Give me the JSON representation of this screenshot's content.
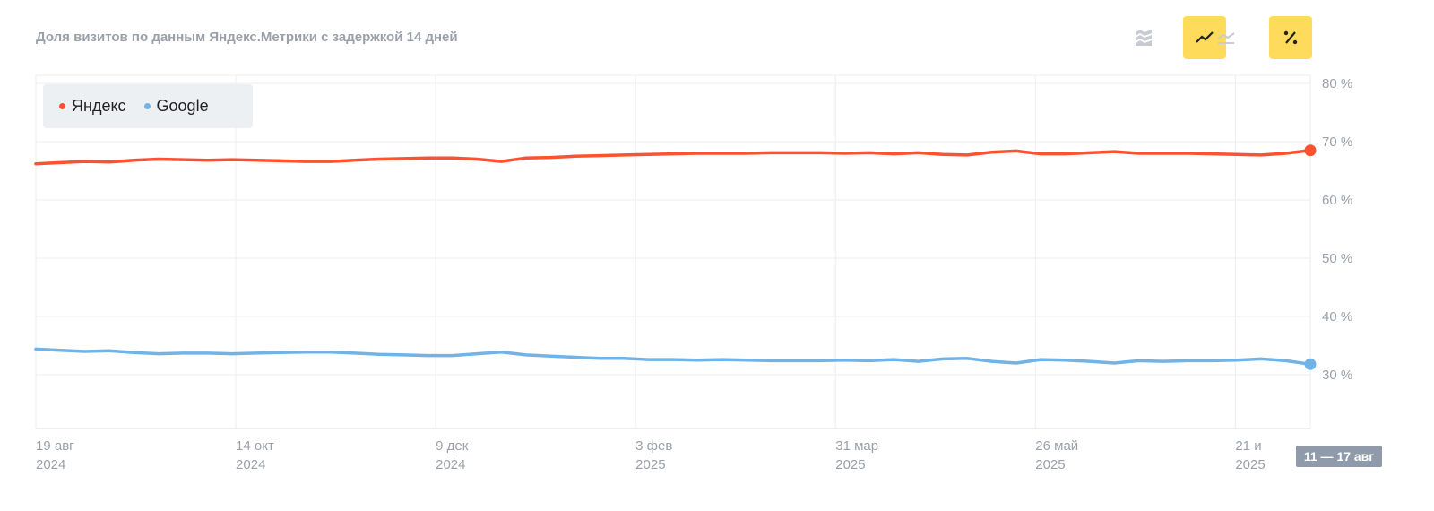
{
  "header": {
    "title": "Доля визитов по данным Яндекс.Метрики с задержкой 14 дней"
  },
  "toolbar": {
    "buttons": [
      {
        "icon": "stacked-area-icon",
        "active": false
      },
      {
        "icon": "line-chart-icon",
        "active": true
      },
      {
        "icon": "area-chart-icon",
        "active": false
      },
      {
        "icon": "percent-icon",
        "active": true
      }
    ],
    "active_color": "#fedb5a"
  },
  "range_badge": "11 — 17 авг",
  "chart_data": {
    "type": "line",
    "x_ticks": [
      {
        "date": "19 авг",
        "year": "2024",
        "week": 0
      },
      {
        "date": "14 окт",
        "year": "2024",
        "week": 8
      },
      {
        "date": "9 дек",
        "year": "2024",
        "week": 16
      },
      {
        "date": "3 фев",
        "year": "2025",
        "week": 24
      },
      {
        "date": "31 мар",
        "year": "2025",
        "week": 32
      },
      {
        "date": "26 май",
        "year": "2025",
        "week": 40
      },
      {
        "date": "21 и",
        "year": "2025",
        "week": 48
      }
    ],
    "y_ticks": [
      "30 %",
      "40 %",
      "50 %",
      "60 %",
      "70 %",
      "80 %"
    ],
    "ylim": [
      20,
      80
    ],
    "xlim": [
      0,
      51
    ],
    "grid": true,
    "legend_position": "top-left",
    "series": [
      {
        "name": "Яндекс",
        "color": "#fc5230",
        "values": [
          66.2,
          66.4,
          66.6,
          66.5,
          66.8,
          67.0,
          66.9,
          66.8,
          66.9,
          66.8,
          66.7,
          66.6,
          66.6,
          66.8,
          67.0,
          67.1,
          67.2,
          67.2,
          67.0,
          66.6,
          67.2,
          67.3,
          67.5,
          67.6,
          67.7,
          67.8,
          67.9,
          68.0,
          68.0,
          68.0,
          68.1,
          68.1,
          68.1,
          68.0,
          68.1,
          67.9,
          68.1,
          67.8,
          67.7,
          68.2,
          68.4,
          67.9,
          67.9,
          68.1,
          68.3,
          68.0,
          68.0,
          68.0,
          67.9,
          67.8,
          67.7,
          68.0,
          68.5
        ]
      },
      {
        "name": "Google",
        "color": "#71b3e6",
        "values": [
          34.4,
          34.2,
          34.0,
          34.1,
          33.8,
          33.6,
          33.7,
          33.7,
          33.6,
          33.7,
          33.8,
          33.9,
          33.9,
          33.7,
          33.5,
          33.4,
          33.3,
          33.3,
          33.6,
          33.9,
          33.4,
          33.2,
          33.0,
          32.8,
          32.8,
          32.6,
          32.6,
          32.5,
          32.6,
          32.5,
          32.4,
          32.4,
          32.4,
          32.5,
          32.4,
          32.6,
          32.3,
          32.7,
          32.8,
          32.3,
          32.0,
          32.6,
          32.5,
          32.3,
          32.0,
          32.4,
          32.3,
          32.4,
          32.4,
          32.5,
          32.7,
          32.4,
          31.8
        ]
      }
    ]
  }
}
